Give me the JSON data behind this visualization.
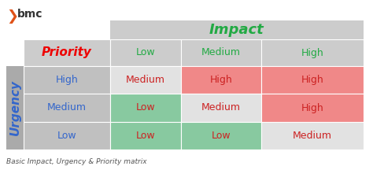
{
  "title": "Impact",
  "subtitle": "Basic Impact, Urgency & Priority matrix",
  "urgency_label": "Urgency",
  "priority_label": "Priority",
  "impact_cols": [
    "Low",
    "Medium",
    "High"
  ],
  "urgency_rows": [
    "High",
    "Medium",
    "Low"
  ],
  "cell_texts": [
    [
      "Medium",
      "High",
      "High"
    ],
    [
      "Low",
      "Medium",
      "High"
    ],
    [
      "Low",
      "Low",
      "Medium"
    ]
  ],
  "cell_colors": [
    [
      "#e2e2e2",
      "#f08888",
      "#f08888"
    ],
    [
      "#88c9a0",
      "#e2e2e2",
      "#f08888"
    ],
    [
      "#88c9a0",
      "#88c9a0",
      "#e2e2e2"
    ]
  ],
  "cell_text_color": "#cc2222",
  "header_bg": "#cccccc",
  "urgency_col_bg": "#c0c0c0",
  "impact_header_bg": "#cccccc",
  "impact_color": "#22aa44",
  "urgency_color": "#3366cc",
  "priority_color": "#ee0000",
  "impact_col_header_color": "#22aa44",
  "urgency_row_color": "#3366cc",
  "urgency_strip_color": "#aaaaaa",
  "bg_color": "#ffffff",
  "bmc_text": "bmc",
  "bmc_color": "#333333",
  "bmc_orange": "#e05218"
}
